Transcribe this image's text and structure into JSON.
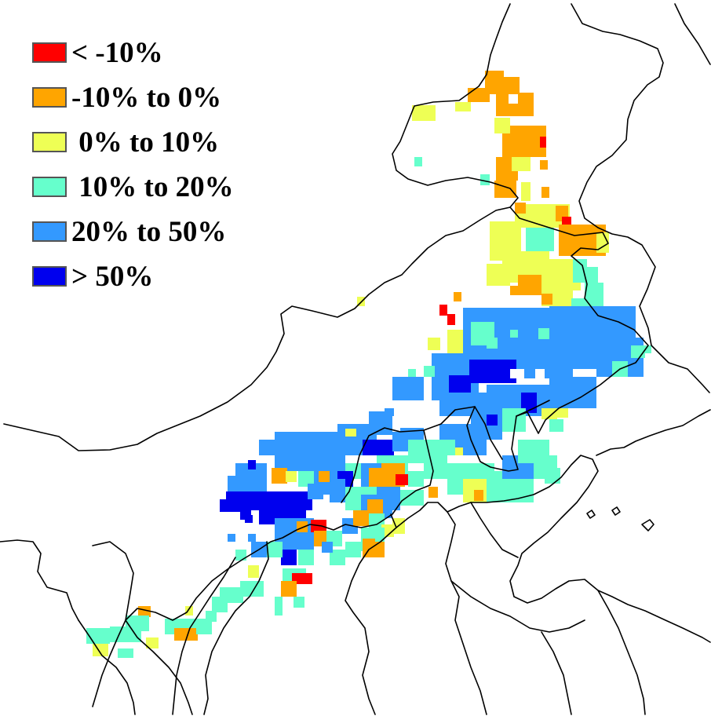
{
  "legend": {
    "items": [
      {
        "label": "< -10%",
        "color": "#ff0000"
      },
      {
        "label": "-10% to 0%",
        "color": "#ffa500"
      },
      {
        "label": " 0% to 10%",
        "color": "#eeff55"
      },
      {
        "label": " 10% to 20%",
        "color": "#66ffcc"
      },
      {
        "label": "20% to 50%",
        "color": "#3399ff"
      },
      {
        "label": "> 50%",
        "color": "#0000ee"
      }
    ]
  }
}
